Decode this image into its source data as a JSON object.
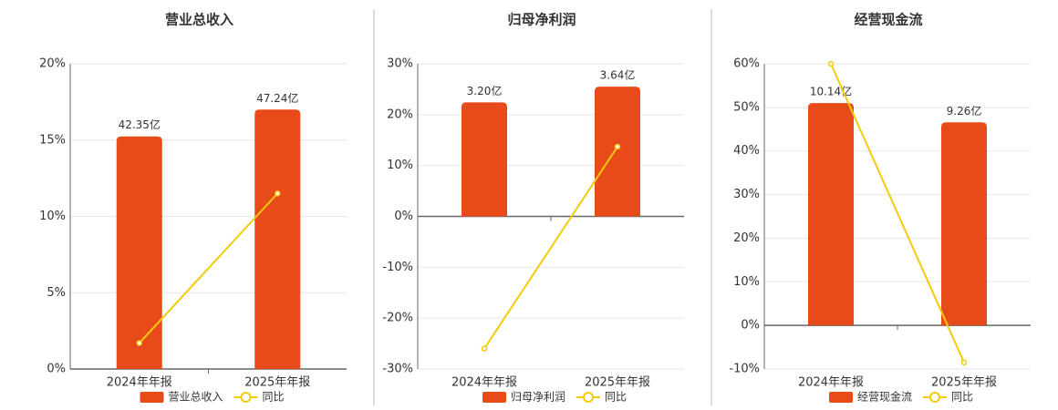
{
  "chart_data": [
    {
      "type": "bar-line",
      "title": "营业总收入",
      "categories": [
        "2024年年报",
        "2025年年报"
      ],
      "series": [
        {
          "name": "营业总收入",
          "color": "#e84a1a",
          "values": [
            42.35,
            47.24
          ],
          "value_labels": [
            "42.35亿",
            "47.24亿"
          ]
        },
        {
          "name": "同比",
          "color": "#f2cc0c",
          "values": [
            1.7,
            11.5
          ]
        }
      ],
      "ylim": [
        0,
        20
      ],
      "yticks": [
        {
          "value": 0,
          "label": "0%"
        },
        {
          "value": 5,
          "label": "5%"
        },
        {
          "value": 10,
          "label": "10%"
        },
        {
          "value": 15,
          "label": "15%"
        },
        {
          "value": 20,
          "label": "20%"
        }
      ],
      "grid": true
    },
    {
      "type": "bar-line",
      "title": "归母净利润",
      "categories": [
        "2024年年报",
        "2025年年报"
      ],
      "series": [
        {
          "name": "归母净利润",
          "color": "#e84a1a",
          "values": [
            3.2,
            3.64
          ],
          "value_labels": [
            "3.20亿",
            "3.64亿"
          ]
        },
        {
          "name": "同比",
          "color": "#f2cc0c",
          "values": [
            -26,
            13.7
          ]
        }
      ],
      "ylim": [
        -30,
        30
      ],
      "yticks": [
        {
          "value": -30,
          "label": "-30%"
        },
        {
          "value": -20,
          "label": "-20%"
        },
        {
          "value": -10,
          "label": "-10%"
        },
        {
          "value": 0,
          "label": "0%"
        },
        {
          "value": 10,
          "label": "10%"
        },
        {
          "value": 20,
          "label": "20%"
        },
        {
          "value": 30,
          "label": "30%"
        }
      ],
      "grid": true
    },
    {
      "type": "bar-line",
      "title": "经营现金流",
      "categories": [
        "2024年年报",
        "2025年年报"
      ],
      "series": [
        {
          "name": "经营现金流",
          "color": "#e84a1a",
          "values": [
            10.14,
            9.26
          ],
          "value_labels": [
            "10.14亿",
            "9.26亿"
          ]
        },
        {
          "name": "同比",
          "color": "#f2cc0c",
          "values": [
            60,
            -8.5
          ]
        }
      ],
      "ylim": [
        -10,
        60
      ],
      "yticks": [
        {
          "value": -10,
          "label": "-10%"
        },
        {
          "value": 0,
          "label": "0%"
        },
        {
          "value": 10,
          "label": "10%"
        },
        {
          "value": 20,
          "label": "20%"
        },
        {
          "value": 30,
          "label": "30%"
        },
        {
          "value": 40,
          "label": "40%"
        },
        {
          "value": 50,
          "label": "50%"
        },
        {
          "value": 60,
          "label": "60%"
        }
      ],
      "grid": true
    }
  ]
}
